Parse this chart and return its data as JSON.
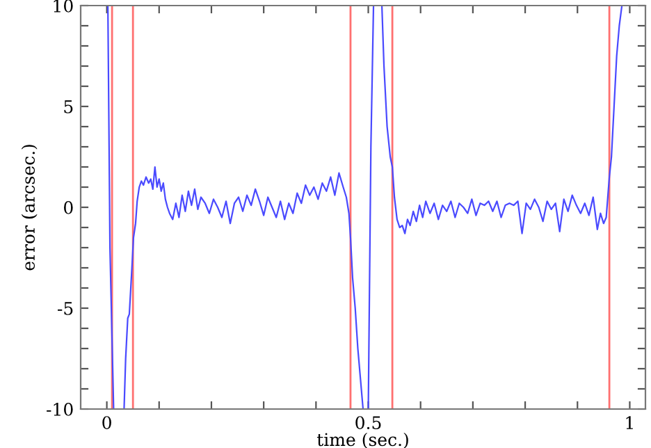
{
  "chart_data": {
    "type": "line",
    "xlabel": "time (sec.)",
    "ylabel": "error (arcsec.)",
    "xlim": [
      -0.05,
      1.03
    ],
    "ylim": [
      -10,
      10
    ],
    "xticks": [
      0,
      {
        "value": 0.1,
        "label": null
      },
      {
        "value": 0.2,
        "label": null
      },
      {
        "value": 0.3,
        "label": null
      },
      {
        "value": 0.4,
        "label": null
      },
      0.5,
      {
        "value": 0.6,
        "label": null
      },
      {
        "value": 0.7,
        "label": null
      },
      {
        "value": 0.8,
        "label": null
      },
      {
        "value": 0.9,
        "label": null
      },
      1
    ],
    "yticks": [
      -10,
      {
        "value": -9,
        "label": null
      },
      {
        "value": -8,
        "label": null
      },
      {
        "value": -7,
        "label": null
      },
      {
        "value": -6,
        "label": null
      },
      -5,
      {
        "value": -4,
        "label": null
      },
      {
        "value": -3,
        "label": null
      },
      {
        "value": -2,
        "label": null
      },
      {
        "value": -1,
        "label": null
      },
      0,
      {
        "value": 1,
        "label": null
      },
      {
        "value": 2,
        "label": null
      },
      {
        "value": 3,
        "label": null
      },
      {
        "value": 4,
        "label": null
      },
      5,
      {
        "value": 6,
        "label": null
      },
      {
        "value": 7,
        "label": null
      },
      {
        "value": 8,
        "label": null
      },
      {
        "value": 9,
        "label": null
      },
      10
    ],
    "grid": false,
    "legend": false,
    "marker": "none",
    "line_style": "solid",
    "ref_lines": [
      {
        "axis": "x",
        "value": 0.01,
        "color": "#ff7070"
      },
      {
        "axis": "x",
        "value": 0.05,
        "color": "#ff7070"
      },
      {
        "axis": "x",
        "value": 0.466,
        "color": "#ff7070"
      },
      {
        "axis": "x",
        "value": 0.546,
        "color": "#ff7070"
      },
      {
        "axis": "x",
        "value": 0.961,
        "color": "#ff7070"
      }
    ],
    "series": [
      {
        "color": "#4a4aff",
        "x": [
          0.002,
          0.006,
          0.013,
          0.02,
          0.033,
          0.036,
          0.04,
          0.043,
          0.048,
          0.051,
          0.055,
          0.058,
          0.062,
          0.066,
          0.07,
          0.075,
          0.08,
          0.084,
          0.088,
          0.092,
          0.096,
          0.1,
          0.104,
          0.108,
          0.112,
          0.116,
          0.12,
          0.126,
          0.132,
          0.138,
          0.144,
          0.15,
          0.156,
          0.162,
          0.168,
          0.174,
          0.18,
          0.188,
          0.196,
          0.204,
          0.212,
          0.22,
          0.228,
          0.236,
          0.244,
          0.252,
          0.26,
          0.268,
          0.276,
          0.284,
          0.292,
          0.3,
          0.308,
          0.316,
          0.324,
          0.332,
          0.34,
          0.348,
          0.356,
          0.364,
          0.372,
          0.38,
          0.388,
          0.396,
          0.404,
          0.412,
          0.42,
          0.428,
          0.436,
          0.444,
          0.452,
          0.458,
          0.463,
          0.466,
          0.47,
          0.475,
          0.48,
          0.485,
          0.49,
          0.495,
          0.5,
          0.505,
          0.51,
          0.518,
          0.526,
          0.53,
          0.536,
          0.542,
          0.546,
          0.55,
          0.555,
          0.56,
          0.565,
          0.57,
          0.575,
          0.58,
          0.586,
          0.592,
          0.598,
          0.604,
          0.61,
          0.618,
          0.626,
          0.634,
          0.642,
          0.65,
          0.658,
          0.666,
          0.674,
          0.682,
          0.69,
          0.698,
          0.706,
          0.714,
          0.722,
          0.73,
          0.738,
          0.746,
          0.754,
          0.762,
          0.77,
          0.778,
          0.786,
          0.794,
          0.802,
          0.81,
          0.818,
          0.826,
          0.834,
          0.842,
          0.85,
          0.858,
          0.866,
          0.874,
          0.882,
          0.89,
          0.898,
          0.906,
          0.914,
          0.922,
          0.93,
          0.938,
          0.944,
          0.95,
          0.955,
          0.958,
          0.961,
          0.965,
          0.97,
          0.975,
          0.98,
          0.985
        ],
        "values": [
          10,
          -2,
          -10,
          null,
          -10,
          -7.5,
          -5.5,
          -5.3,
          -3,
          -1.5,
          -0.8,
          0.3,
          1.0,
          1.3,
          1.1,
          1.5,
          1.2,
          1.4,
          0.9,
          2.0,
          1.0,
          1.4,
          0.8,
          1.2,
          0.4,
          0.0,
          -0.3,
          -0.6,
          0.2,
          -0.5,
          0.6,
          -0.2,
          0.8,
          0.1,
          0.9,
          -0.1,
          0.5,
          0.2,
          -0.3,
          0.4,
          0.0,
          -0.5,
          0.3,
          -0.8,
          0.2,
          0.5,
          -0.2,
          0.6,
          0.1,
          0.9,
          0.3,
          -0.4,
          0.5,
          0.0,
          -0.5,
          0.3,
          -0.6,
          0.2,
          -0.3,
          0.7,
          0.2,
          1.1,
          0.6,
          1.0,
          0.4,
          1.2,
          0.8,
          1.5,
          0.6,
          1.7,
          1.0,
          0.5,
          -0.3,
          -1.5,
          -3.5,
          -5,
          -7,
          -8.5,
          -10,
          null,
          -10,
          3,
          10,
          null,
          10,
          7,
          4,
          2.5,
          2,
          0.5,
          -0.6,
          -1.0,
          -0.9,
          -1.3,
          -0.6,
          -0.9,
          -0.2,
          -0.7,
          0.1,
          -0.5,
          0.3,
          -0.3,
          0.2,
          -0.6,
          0.1,
          -0.2,
          0.3,
          -0.5,
          0.2,
          0.0,
          -0.3,
          0.4,
          -0.4,
          0.2,
          0.1,
          0.3,
          -0.2,
          0.3,
          -0.5,
          0.1,
          0.2,
          0.1,
          0.3,
          -1.3,
          0.2,
          -0.1,
          0.4,
          0.0,
          -0.7,
          0.3,
          -0.1,
          0.2,
          -1.2,
          0.4,
          -0.2,
          0.6,
          0.1,
          -0.3,
          0.2,
          -0.4,
          0.5,
          -1.1,
          -0.3,
          -0.8,
          -0.5,
          0.5,
          1.5,
          2.5,
          5,
          7.5,
          9,
          10
        ]
      }
    ]
  }
}
